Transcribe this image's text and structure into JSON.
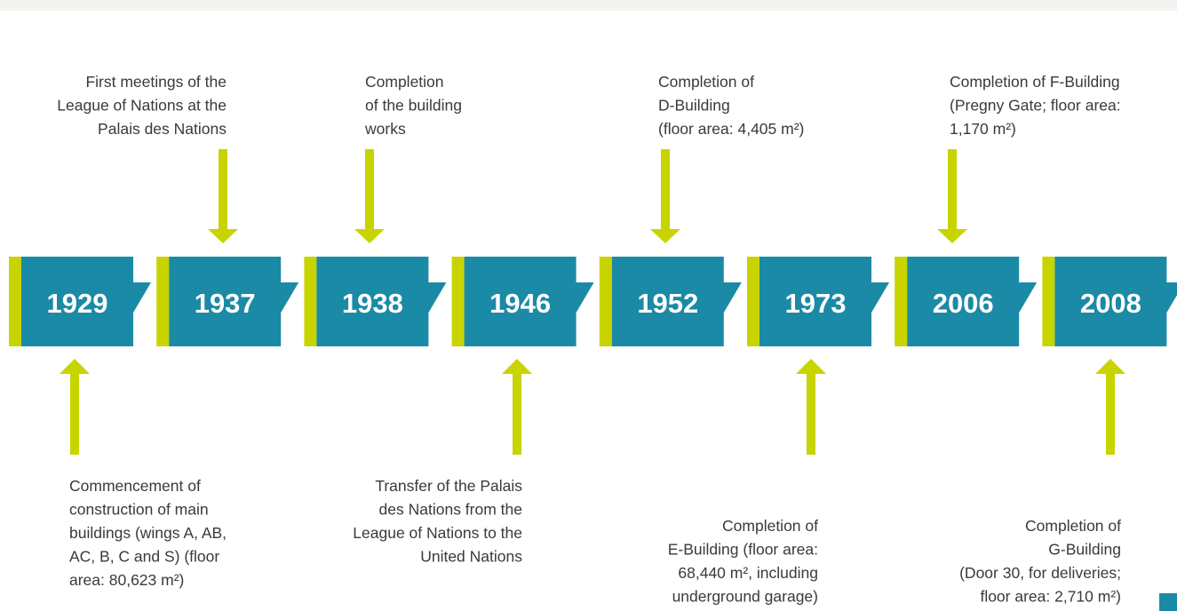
{
  "events": [
    {
      "year": "1929",
      "below": [
        "Commencement of",
        "construction of main",
        "buildings (wings A, AB,",
        "AC, B, C and S) (floor",
        "area: 80,623 m²)"
      ]
    },
    {
      "year": "1937",
      "above": [
        "First meetings of the",
        "League of Nations at the",
        "Palais des Nations"
      ]
    },
    {
      "year": "1938",
      "above": [
        "Completion",
        "of the building",
        "works"
      ]
    },
    {
      "year": "1946",
      "below": [
        "Transfer of the Palais",
        "des Nations from the",
        "League of Nations to the",
        "United Nations"
      ]
    },
    {
      "year": "1952",
      "above": [
        "Completion of",
        "D-Building",
        "(floor area: 4,405 m²)"
      ]
    },
    {
      "year": "1973",
      "below": [
        "Completion of",
        "E-Building (floor area:",
        "68,440 m², including",
        "underground garage)"
      ]
    },
    {
      "year": "2006",
      "above": [
        "Completion of F-Building",
        "(Pregny Gate; floor area:",
        "1,170 m²)"
      ]
    },
    {
      "year": "2008",
      "below": [
        "Completion of",
        "G-Building",
        "(Door 30, for deliveries;",
        "floor area: 2,710 m²)"
      ]
    }
  ]
}
